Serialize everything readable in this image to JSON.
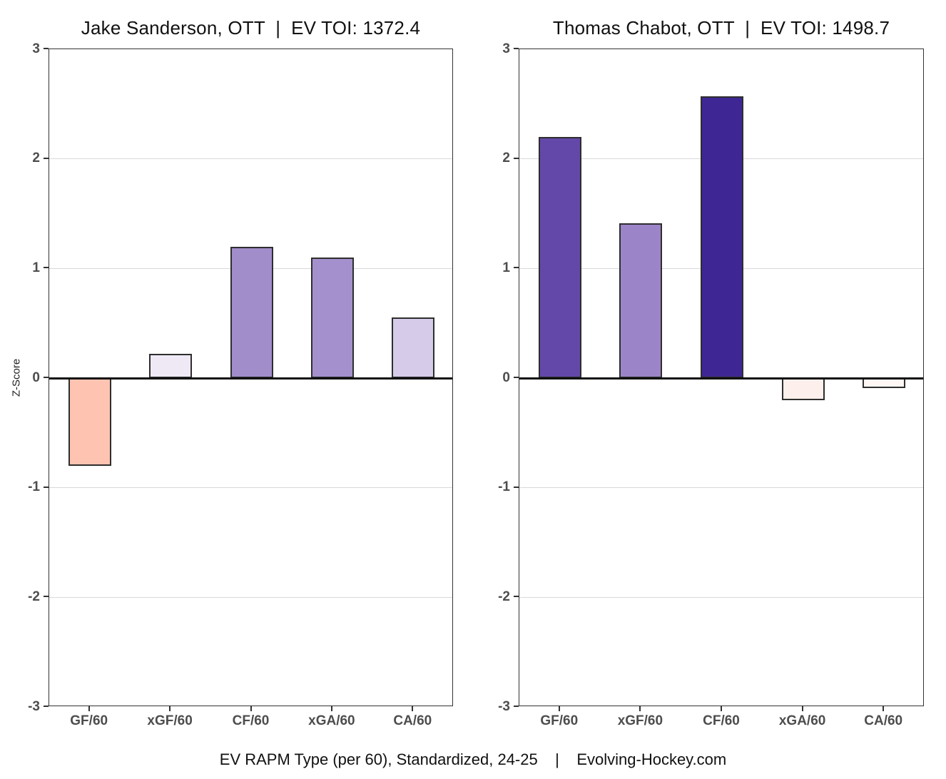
{
  "page": {
    "y_axis_title": "Z-Score",
    "footer": "EV RAPM Type (per 60), Standardized, 24-25    |    Evolving-Hockey.com"
  },
  "chart_data": [
    {
      "type": "bar",
      "title": "Jake Sanderson, OTT  |  EV TOI: 1372.4",
      "player": "Jake Sanderson",
      "team": "OTT",
      "ev_toi": "1372.4",
      "categories": [
        "GF/60",
        "xGF/60",
        "CF/60",
        "xGA/60",
        "CA/60"
      ],
      "values": [
        -0.8,
        0.22,
        1.2,
        1.1,
        0.55
      ],
      "bar_colors": [
        "#ffc4b1",
        "#efe9f6",
        "#a28dcb",
        "#a590ce",
        "#d6cce9"
      ],
      "bar_edge_color": "#2e2e2e",
      "xlabel": "",
      "ylabel": "Z-Score",
      "ylim": [
        -3,
        3
      ],
      "yticks": [
        3,
        2,
        1,
        0,
        -1,
        -2,
        -3
      ],
      "grid": true,
      "legend": "none"
    },
    {
      "type": "bar",
      "title": "Thomas Chabot, OTT  |  EV TOI: 1498.7",
      "player": "Thomas Chabot",
      "team": "OTT",
      "ev_toi": "1498.7",
      "categories": [
        "GF/60",
        "xGF/60",
        "CF/60",
        "xGA/60",
        "CA/60"
      ],
      "values": [
        2.2,
        1.41,
        2.57,
        -0.2,
        -0.09
      ],
      "bar_colors": [
        "#6348a9",
        "#9c84c8",
        "#3e2794",
        "#fdefeb",
        "#fef7f4"
      ],
      "bar_edge_color": "#2e2e2e",
      "xlabel": "",
      "ylabel": "Z-Score",
      "ylim": [
        -3,
        3
      ],
      "yticks": [
        3,
        2,
        1,
        0,
        -1,
        -2,
        -3
      ],
      "grid": true,
      "legend": "none"
    }
  ]
}
